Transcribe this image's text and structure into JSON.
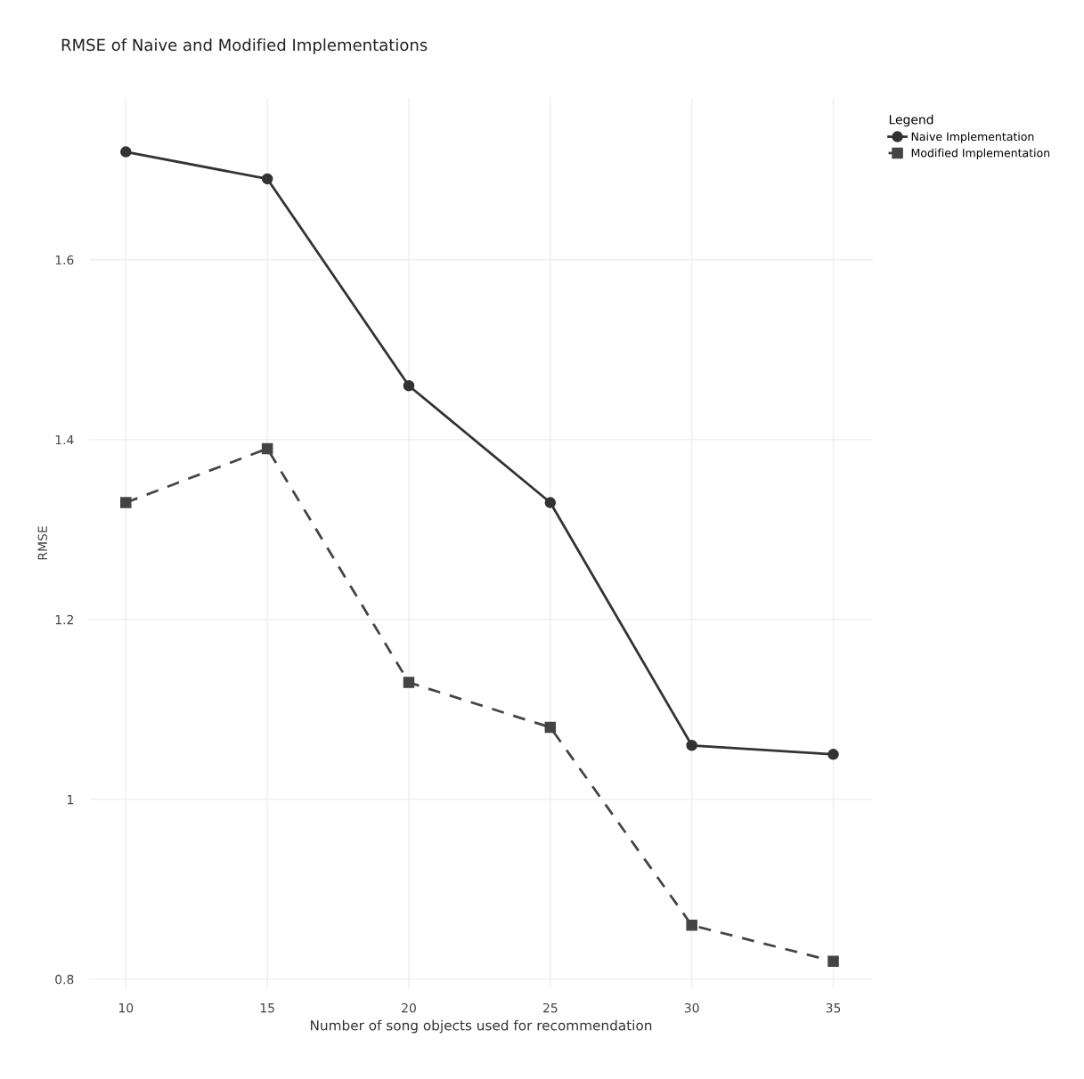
{
  "chart_data": {
    "type": "line",
    "title": "RMSE of Naive and Modified Implementations",
    "xlabel": "Number of song objects used for recommendation",
    "ylabel": "RMSE",
    "legend_title": "Legend",
    "x": [
      10,
      15,
      20,
      25,
      30,
      35
    ],
    "series": [
      {
        "name": "Naive Implementation",
        "color": "#333333",
        "values": [
          1.72,
          1.69,
          1.46,
          1.33,
          1.06,
          1.05
        ],
        "marker": "circle",
        "line_style": "solid"
      },
      {
        "name": "Modified Implementation",
        "color": "#444444",
        "values": [
          1.33,
          1.39,
          1.13,
          1.08,
          0.86,
          0.82
        ],
        "marker": "square",
        "line_style": "dashed"
      }
    ],
    "xlim": [
      8.7,
      36.4
    ],
    "ylim": [
      0.79,
      1.78
    ],
    "xticks": [
      10,
      15,
      20,
      25,
      30,
      35
    ],
    "yticks": [
      0.8,
      1,
      1.2,
      1.4,
      1.6
    ],
    "grid": true,
    "legend": "top right"
  }
}
